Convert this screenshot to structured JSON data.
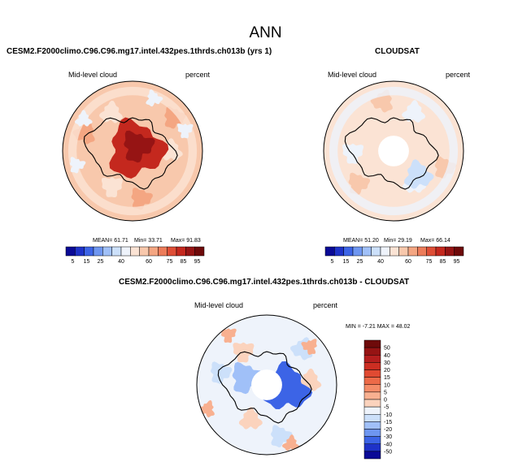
{
  "page_title": "ANN",
  "chart_data": [
    {
      "type": "heatmap",
      "projection": "polar-stereographic-south",
      "title": "CESM2.F2000climo.C96.C96.mg17.intel.432pes.1thrds.ch013b (yrs 1)",
      "left_label": "Mid-level cloud",
      "right_label": "percent",
      "stats_text": {
        "mean": "MEAN=  61.71",
        "min": "Min=  33.71",
        "max": "Max=  91.83"
      },
      "stats": {
        "mean": 61.71,
        "min": 33.71,
        "max": 91.83
      },
      "colorbar": {
        "ticks": [
          "5",
          "15",
          "25",
          "40",
          "60",
          "75",
          "85",
          "95"
        ],
        "colors": [
          "#0a0a96",
          "#1e32c8",
          "#3c64e6",
          "#6e96f0",
          "#a0c0f8",
          "#cce0fa",
          "#eef3fb",
          "#fbe3d4",
          "#f8c8ac",
          "#f4a682",
          "#ec7c5a",
          "#de4e36",
          "#c4281e",
          "#961414",
          "#6e0a0a"
        ]
      },
      "regions": [
        {
          "name": "ocean-background",
          "value": 58
        },
        {
          "name": "antarctic-interior",
          "value": 85
        },
        {
          "name": "antarctic-core",
          "value": 92
        },
        {
          "name": "sub-polar-ring",
          "value": 48
        },
        {
          "name": "scattered-lows",
          "value": 42
        }
      ]
    },
    {
      "type": "heatmap",
      "projection": "polar-stereographic-south",
      "title": "CLOUDSAT",
      "left_label": "Mid-level cloud",
      "right_label": "percent",
      "stats_text": {
        "mean": "MEAN=  51.20",
        "min": "Min=  29.19",
        "max": "Max=  66.14"
      },
      "stats": {
        "mean": 51.2,
        "min": 29.19,
        "max": 66.14
      },
      "colorbar": {
        "ticks": [
          "5",
          "15",
          "25",
          "40",
          "60",
          "75",
          "85",
          "95"
        ],
        "colors": [
          "#0a0a96",
          "#1e32c8",
          "#3c64e6",
          "#6e96f0",
          "#a0c0f8",
          "#cce0fa",
          "#eef3fb",
          "#fbe3d4",
          "#f8c8ac",
          "#f4a682",
          "#ec7c5a",
          "#de4e36",
          "#c4281e",
          "#961414",
          "#6e0a0a"
        ]
      },
      "regions": [
        {
          "name": "ocean-background",
          "value": 52
        },
        {
          "name": "sub-polar-ring",
          "value": 44
        },
        {
          "name": "east-antarctic-low",
          "value": 36
        },
        {
          "name": "pole-missing",
          "value": null
        }
      ]
    },
    {
      "type": "heatmap",
      "projection": "polar-stereographic-south",
      "title": "CESM2.F2000climo.C96.C96.mg17.intel.432pes.1thrds.ch013b - CLOUDSAT",
      "left_label": "Mid-level cloud",
      "right_label": "percent",
      "stats_text": {
        "minmax": "MIN = -7.21  MAX = 48.02"
      },
      "stats": {
        "min": -7.21,
        "max": 48.02
      },
      "colorbar": {
        "ticks": [
          "50",
          "40",
          "30",
          "20",
          "15",
          "10",
          "5",
          "0",
          "-5",
          "-10",
          "-15",
          "-20",
          "-30",
          "-40",
          "-50"
        ],
        "colors": [
          "#6e0a0a",
          "#961414",
          "#b41e1e",
          "#cc2e22",
          "#e04a32",
          "#ec6a48",
          "#f48c68",
          "#f8b090",
          "#fbd3bd",
          "#eef3fb",
          "#cce0fa",
          "#a0c0f8",
          "#6e96f0",
          "#3c64e6",
          "#1e32c8",
          "#0a0a96"
        ]
      },
      "regions": [
        {
          "name": "ocean-background",
          "value": 12
        },
        {
          "name": "east-antarctic-high",
          "value": 40
        },
        {
          "name": "coastal-moderate",
          "value": 22
        },
        {
          "name": "negative-patches",
          "value": -4
        },
        {
          "name": "pole-missing",
          "value": null
        }
      ]
    }
  ]
}
